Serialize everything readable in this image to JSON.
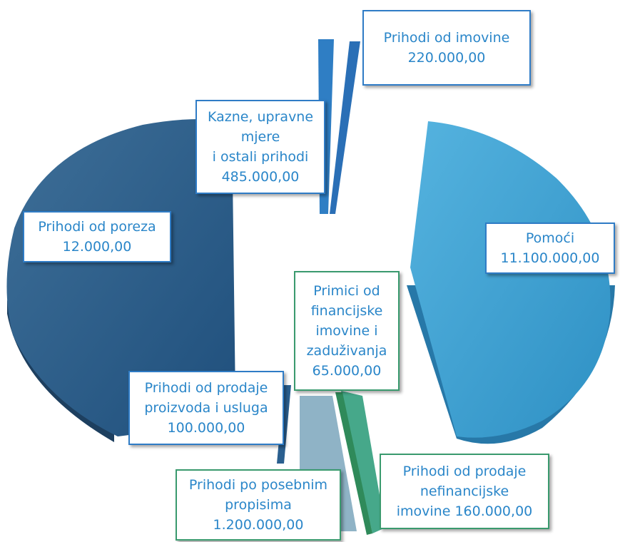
{
  "chart_data": {
    "type": "pie",
    "title": "",
    "slices": [
      {
        "label": "Pomoći",
        "value": 11100000,
        "value_text": "11.100.000,00",
        "color": "#3aa3d4"
      },
      {
        "label": "Prihodi od prodaje nefinancijske imovine",
        "value": 160000,
        "value_text": "160.000,00",
        "color": "#46a88a"
      },
      {
        "label": "Primici od financijske imovine i zaduživanja",
        "value": 65000,
        "value_text": "65.000,00",
        "color": "#2f8a5a"
      },
      {
        "label": "Prihodi po posebnim propisima",
        "value": 1200000,
        "value_text": "1.200.000,00",
        "color": "#8fb3c6"
      },
      {
        "label": "Prihodi od prodaje proizvoda i usluga",
        "value": 100000,
        "value_text": "100.000,00",
        "color": "#2a5f8f"
      },
      {
        "label": "Prihodi od poreza",
        "value": 12000,
        "value_text": "12.000,00",
        "color": "#2b5f8b"
      },
      {
        "label": "Kazne, upravne mjere i ostali prihodi",
        "value": 485000,
        "value_text": "485.000,00",
        "color": "#2f7ec4"
      },
      {
        "label": "Prihodi od imovine",
        "value": 220000,
        "value_text": "220.000,00",
        "color": "#2a6fb6"
      }
    ],
    "legend": "none",
    "data_labels": "callout boxes with category name and value"
  },
  "labels": {
    "pomoci": "Pomoći\n11.100.000,00",
    "nefin": "Prihodi od prodaje\nnefinancijske\nimovine 160.000,00",
    "financ": "Primici od\nfinancijske\nimovine i\nzaduživanja\n65.000,00",
    "posebni": "Prihodi po posebnim\npropisima\n1.200.000,00",
    "proizvodi": "Prihodi od prodaje\nproizvoda i usluga\n100.000,00",
    "porez": "Prihodi od poreza\n12.000,00",
    "kazne": "Kazne, upravne\nmjere\ni ostali prihodi\n485.000,00",
    "imovina": "Prihodi od imovine\n220.000,00"
  }
}
